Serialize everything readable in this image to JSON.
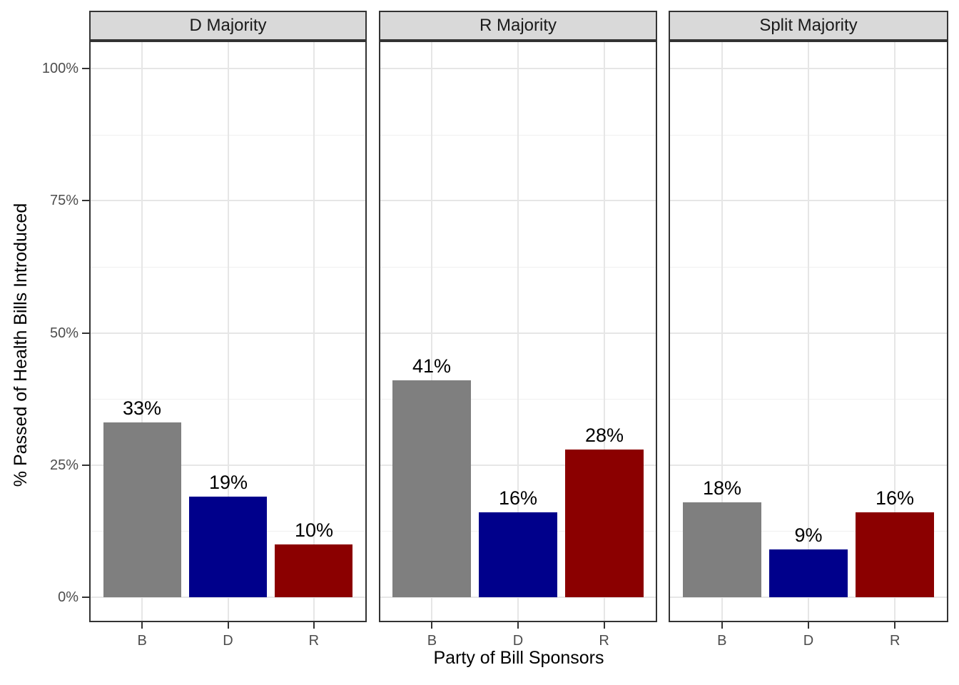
{
  "chart_data": {
    "type": "bar",
    "faceted": true,
    "xlabel": "Party of Bill Sponsors",
    "ylabel": "% Passed of Health Bills Introduced",
    "categories": [
      "B",
      "D",
      "R"
    ],
    "facets": [
      {
        "label": "D Majority",
        "values": [
          33,
          19,
          10
        ],
        "value_labels": [
          "33%",
          "19%",
          "10%"
        ]
      },
      {
        "label": "R Majority",
        "values": [
          41,
          16,
          28
        ],
        "value_labels": [
          "41%",
          "16%",
          "28%"
        ]
      },
      {
        "label": "Split Majority",
        "values": [
          18,
          9,
          16
        ],
        "value_labels": [
          "18%",
          "9%",
          "16%"
        ]
      }
    ],
    "y_ticks": [
      {
        "value": 0,
        "label": "0%"
      },
      {
        "value": 25,
        "label": "25%"
      },
      {
        "value": 50,
        "label": "50%"
      },
      {
        "value": 75,
        "label": "75%"
      },
      {
        "value": 100,
        "label": "100%"
      }
    ],
    "y_minor_gridlines": [
      12.5,
      37.5,
      62.5,
      87.5
    ],
    "ylim": [
      0,
      100
    ],
    "grid": {
      "horizontal": "major and minor",
      "vertical": "major at category centers"
    },
    "legend": "none",
    "colors": {
      "bar_B": "#7F7F7F",
      "bar_D": "#00008B",
      "bar_R": "#8B0000",
      "strip_background": "#D9D9D9",
      "panel_border": "#333333",
      "grid_major": "#E6E6E6",
      "grid_minor": "#F0F0F0",
      "tick_label": "#4D4D4D",
      "text": "#000000",
      "background": "#FFFFFF"
    }
  }
}
